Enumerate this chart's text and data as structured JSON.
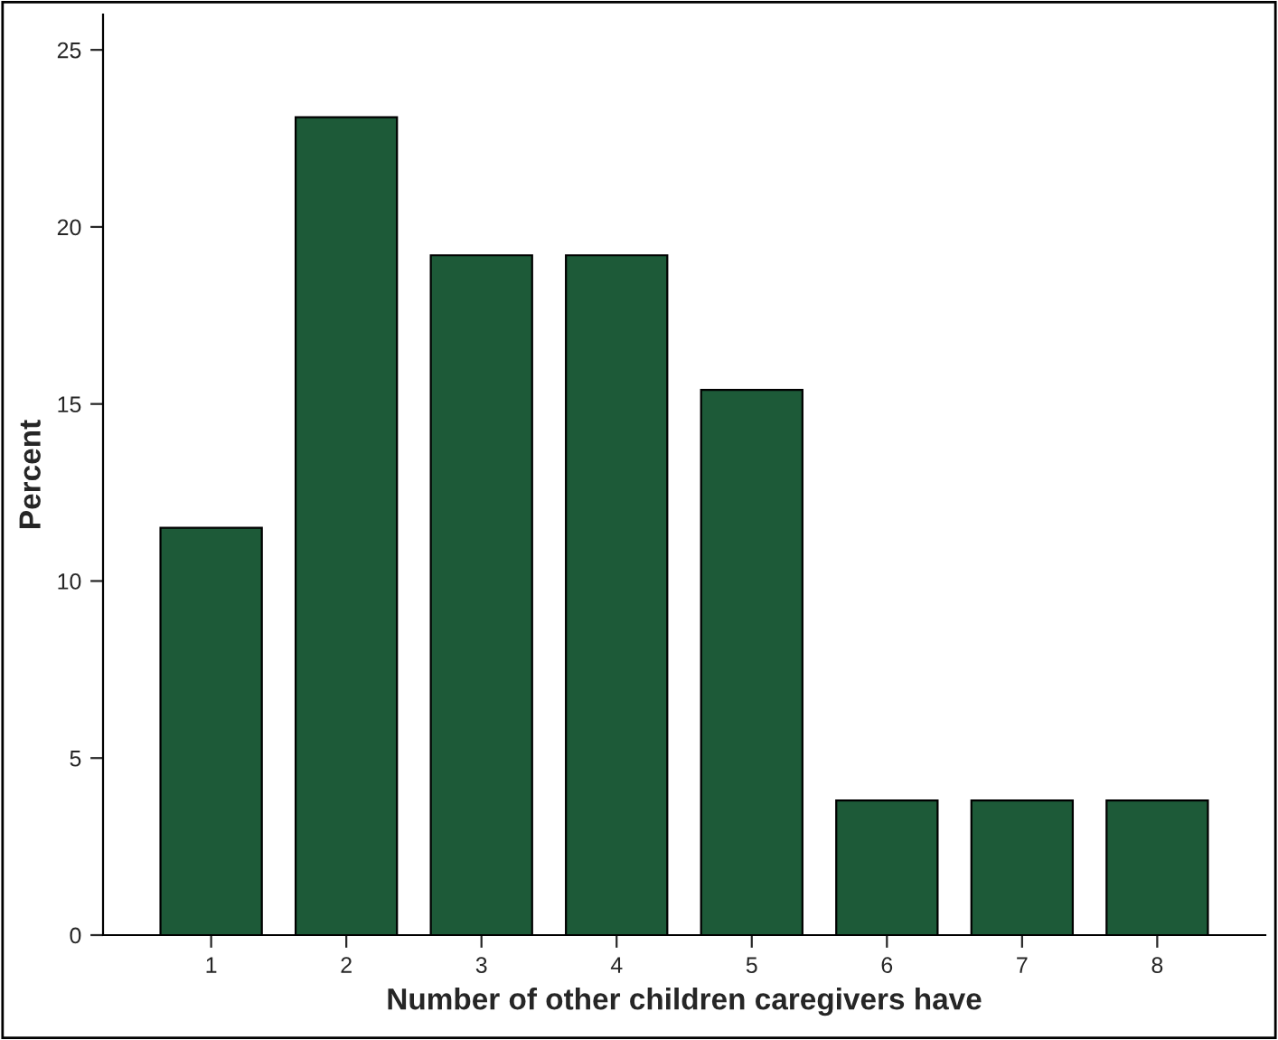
{
  "chart_data": {
    "type": "bar",
    "xlabel": "Number of other children caregivers have",
    "ylabel": "Percent",
    "categories": [
      "1",
      "2",
      "3",
      "4",
      "5",
      "6",
      "7",
      "8"
    ],
    "values": [
      11.5,
      23.1,
      19.2,
      19.2,
      15.4,
      3.8,
      3.8,
      3.8
    ],
    "color": "#1d5a38",
    "ylim": [
      0,
      26
    ],
    "yticks": [
      0,
      5,
      10,
      15,
      20,
      25
    ],
    "grid": false,
    "legend": false
  }
}
